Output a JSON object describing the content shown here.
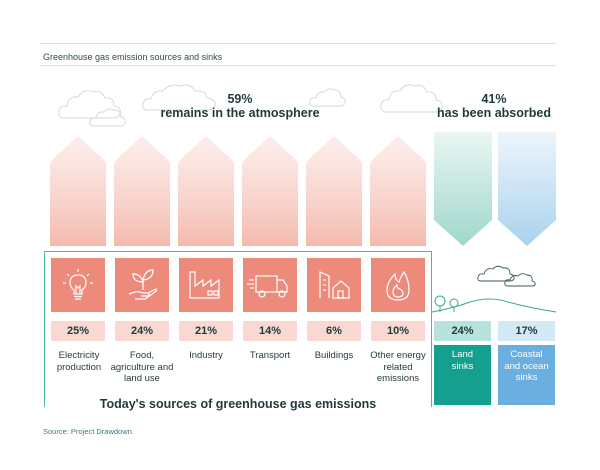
{
  "title": "Greenhouse gas emission sources and sinks",
  "atmosphere": {
    "percent": "59%",
    "text": "remains in the atmosphere"
  },
  "absorbed": {
    "percent": "41%",
    "text": "has been absorbed"
  },
  "sources": [
    {
      "percent": "25%",
      "label": "Electricity production",
      "icon": "lightbulb-icon"
    },
    {
      "percent": "24%",
      "label": "Food, agriculture and land use",
      "icon": "plant-hand-icon"
    },
    {
      "percent": "21%",
      "label": "Industry",
      "icon": "factory-icon"
    },
    {
      "percent": "14%",
      "label": "Transport",
      "icon": "truck-icon"
    },
    {
      "percent": "6%",
      "label": "Buildings",
      "icon": "buildings-icon"
    },
    {
      "percent": "10%",
      "label": "Other energy related emissions",
      "icon": "flame-icon"
    }
  ],
  "sinks": [
    {
      "percent": "24%",
      "label": "Land sinks",
      "color": "#149f8e"
    },
    {
      "percent": "17%",
      "label": "Coastal and ocean sinks",
      "color": "#6aafe0"
    }
  ],
  "sources_heading": "Today's sources of greenhouse gas emissions",
  "source_note": "Source: Project Drawdown.",
  "colors": {
    "source_tile": "#ec8a7b",
    "source_pct": "#f9d8d1",
    "accent_green": "#48b79b",
    "land": "#149f8e",
    "ocean": "#6aafe0"
  }
}
